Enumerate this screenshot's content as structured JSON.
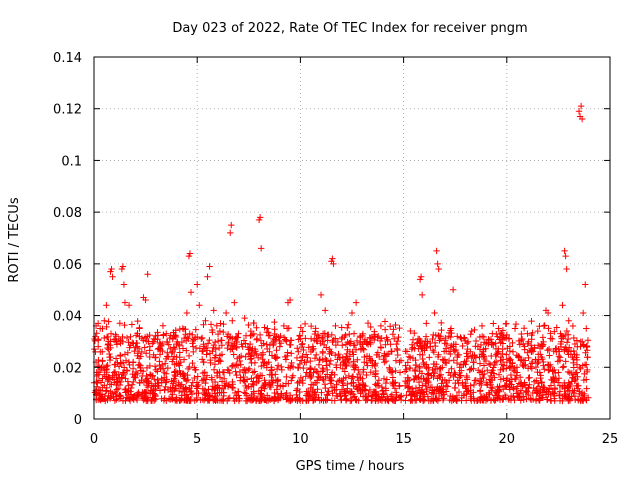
{
  "chart_data": {
    "type": "scatter",
    "title": "Day 023 of 2022, Rate Of TEC Index for receiver pngm",
    "xlabel": "GPS time / hours",
    "ylabel": "ROTI / TECUs",
    "xlim": [
      0,
      25
    ],
    "ylim": [
      0,
      0.14
    ],
    "xticks": [
      0,
      5,
      10,
      15,
      20,
      25
    ],
    "xtick_labels": [
      "0",
      "5",
      "10",
      "15",
      "20",
      "25"
    ],
    "yticks": [
      0,
      0.02,
      0.04,
      0.06,
      0.08,
      0.1,
      0.12,
      0.14
    ],
    "ytick_labels": [
      "0",
      "0.02",
      "0.04",
      "0.06",
      "0.08",
      "0.1",
      "0.12",
      "0.14"
    ],
    "grid": true,
    "marker": "+",
    "color": "#ff0000",
    "series": [
      {
        "name": "ROTI",
        "points": [
          [
            0.0,
            0.014
          ],
          [
            0.1,
            0.022
          ],
          [
            0.2,
            0.018
          ],
          [
            0.3,
            0.011
          ],
          [
            0.4,
            0.026
          ],
          [
            0.5,
            0.013
          ],
          [
            0.6,
            0.019
          ],
          [
            0.7,
            0.009
          ],
          [
            0.8,
            0.024
          ],
          [
            0.9,
            0.016
          ],
          [
            0.1,
            0.036
          ],
          [
            0.2,
            0.037
          ],
          [
            0.3,
            0.035
          ],
          [
            0.5,
            0.038
          ],
          [
            0.6,
            0.044
          ],
          [
            0.7,
            0.03
          ],
          [
            0.8,
            0.057
          ],
          [
            0.85,
            0.058
          ],
          [
            0.9,
            0.055
          ],
          [
            1.0,
            0.021
          ],
          [
            1.1,
            0.014
          ],
          [
            1.2,
            0.031
          ],
          [
            1.3,
            0.008
          ],
          [
            1.4,
            0.018
          ],
          [
            1.5,
            0.025
          ],
          [
            1.35,
            0.058
          ],
          [
            1.4,
            0.059
          ],
          [
            1.45,
            0.052
          ],
          [
            1.5,
            0.045
          ],
          [
            1.7,
            0.044
          ],
          [
            1.8,
            0.012
          ],
          [
            1.9,
            0.022
          ],
          [
            2.0,
            0.017
          ],
          [
            2.1,
            0.028
          ],
          [
            2.2,
            0.035
          ],
          [
            2.3,
            0.015
          ],
          [
            2.4,
            0.047
          ],
          [
            2.5,
            0.046
          ],
          [
            2.6,
            0.056
          ],
          [
            2.7,
            0.024
          ],
          [
            2.8,
            0.013
          ],
          [
            2.9,
            0.031
          ],
          [
            3.0,
            0.019
          ],
          [
            3.1,
            0.027
          ],
          [
            3.2,
            0.011
          ],
          [
            3.3,
            0.021
          ],
          [
            3.4,
            0.016
          ],
          [
            3.5,
            0.033
          ],
          [
            3.6,
            0.024
          ],
          [
            3.7,
            0.012
          ],
          [
            3.8,
            0.026
          ],
          [
            3.9,
            0.018
          ],
          [
            4.0,
            0.029
          ],
          [
            4.1,
            0.014
          ],
          [
            4.2,
            0.022
          ],
          [
            4.3,
            0.035
          ],
          [
            4.4,
            0.017
          ],
          [
            4.5,
            0.041
          ],
          [
            4.6,
            0.063
          ],
          [
            4.65,
            0.064
          ],
          [
            4.7,
            0.049
          ],
          [
            4.8,
            0.028
          ],
          [
            4.9,
            0.019
          ],
          [
            5.0,
            0.052
          ],
          [
            5.1,
            0.044
          ],
          [
            5.2,
            0.031
          ],
          [
            5.3,
            0.022
          ],
          [
            5.4,
            0.038
          ],
          [
            5.5,
            0.055
          ],
          [
            5.6,
            0.059
          ],
          [
            5.7,
            0.016
          ],
          [
            5.8,
            0.042
          ],
          [
            5.9,
            0.027
          ],
          [
            6.0,
            0.013
          ],
          [
            6.1,
            0.034
          ],
          [
            6.2,
            0.025
          ],
          [
            6.3,
            0.018
          ],
          [
            6.4,
            0.041
          ],
          [
            6.5,
            0.029
          ],
          [
            6.6,
            0.072
          ],
          [
            6.65,
            0.075
          ],
          [
            6.7,
            0.038
          ],
          [
            6.8,
            0.045
          ],
          [
            6.9,
            0.021
          ],
          [
            7.0,
            0.033
          ],
          [
            7.1,
            0.016
          ],
          [
            7.2,
            0.028
          ],
          [
            7.3,
            0.039
          ],
          [
            7.4,
            0.012
          ],
          [
            7.5,
            0.025
          ],
          [
            7.6,
            0.034
          ],
          [
            7.7,
            0.018
          ],
          [
            7.8,
            0.027
          ],
          [
            7.9,
            0.031
          ],
          [
            8.0,
            0.077
          ],
          [
            8.05,
            0.078
          ],
          [
            8.1,
            0.066
          ],
          [
            8.2,
            0.022
          ],
          [
            8.3,
            0.014
          ],
          [
            8.4,
            0.035
          ],
          [
            8.5,
            0.026
          ],
          [
            8.6,
            0.017
          ],
          [
            8.7,
            0.031
          ],
          [
            8.8,
            0.024
          ],
          [
            8.9,
            0.013
          ],
          [
            9.0,
            0.028
          ],
          [
            9.1,
            0.019
          ],
          [
            9.2,
            0.036
          ],
          [
            9.3,
            0.023
          ],
          [
            9.4,
            0.045
          ],
          [
            9.5,
            0.046
          ],
          [
            9.6,
            0.016
          ],
          [
            9.8,
            0.011
          ],
          [
            9.9,
            0.026
          ],
          [
            10.0,
            0.031
          ],
          [
            10.1,
            0.015
          ],
          [
            10.2,
            0.022
          ],
          [
            10.3,
            0.018
          ],
          [
            10.5,
            0.012
          ],
          [
            10.6,
            0.028
          ],
          [
            10.8,
            0.014
          ],
          [
            10.9,
            0.021
          ],
          [
            11.0,
            0.048
          ],
          [
            11.1,
            0.033
          ],
          [
            11.2,
            0.042
          ],
          [
            11.3,
            0.019
          ],
          [
            11.4,
            0.027
          ],
          [
            11.5,
            0.061
          ],
          [
            11.55,
            0.062
          ],
          [
            11.6,
            0.06
          ],
          [
            11.7,
            0.036
          ],
          [
            11.8,
            0.023
          ],
          [
            11.9,
            0.015
          ],
          [
            12.0,
            0.031
          ],
          [
            12.2,
            0.016
          ],
          [
            12.4,
            0.026
          ],
          [
            12.5,
            0.041
          ],
          [
            12.6,
            0.033
          ],
          [
            12.7,
            0.045
          ],
          [
            12.8,
            0.019
          ],
          [
            13.0,
            0.012
          ],
          [
            13.1,
            0.024
          ],
          [
            13.2,
            0.017
          ],
          [
            13.4,
            0.029
          ],
          [
            13.6,
            0.021
          ],
          [
            13.8,
            0.015
          ],
          [
            13.9,
            0.036
          ],
          [
            14.0,
            0.011
          ],
          [
            14.2,
            0.025
          ],
          [
            14.4,
            0.018
          ],
          [
            14.6,
            0.014
          ],
          [
            14.8,
            0.022
          ],
          [
            15.2,
            0.016
          ],
          [
            15.4,
            0.027
          ],
          [
            15.6,
            0.012
          ],
          [
            15.7,
            0.031
          ],
          [
            15.8,
            0.054
          ],
          [
            15.85,
            0.055
          ],
          [
            15.9,
            0.048
          ],
          [
            16.0,
            0.021
          ],
          [
            16.1,
            0.037
          ],
          [
            16.2,
            0.014
          ],
          [
            16.3,
            0.028
          ],
          [
            16.4,
            0.019
          ],
          [
            16.5,
            0.041
          ],
          [
            16.6,
            0.065
          ],
          [
            16.65,
            0.06
          ],
          [
            16.7,
            0.058
          ],
          [
            16.8,
            0.032
          ],
          [
            16.9,
            0.023
          ],
          [
            17.0,
            0.015
          ],
          [
            17.1,
            0.029
          ],
          [
            17.2,
            0.018
          ],
          [
            17.3,
            0.035
          ],
          [
            17.4,
            0.05
          ],
          [
            17.5,
            0.012
          ],
          [
            17.6,
            0.024
          ],
          [
            17.7,
            0.016
          ],
          [
            17.8,
            0.031
          ],
          [
            17.9,
            0.021
          ],
          [
            18.0,
            0.013
          ],
          [
            18.1,
            0.027
          ],
          [
            18.2,
            0.019
          ],
          [
            18.3,
            0.034
          ],
          [
            18.4,
            0.022
          ],
          [
            18.5,
            0.015
          ],
          [
            18.6,
            0.028
          ],
          [
            18.7,
            0.018
          ],
          [
            18.8,
            0.036
          ],
          [
            18.9,
            0.024
          ],
          [
            19.0,
            0.014
          ],
          [
            19.1,
            0.029
          ],
          [
            19.2,
            0.021
          ],
          [
            19.3,
            0.033
          ],
          [
            19.4,
            0.016
          ],
          [
            19.5,
            0.025
          ],
          [
            19.6,
            0.035
          ],
          [
            19.7,
            0.019
          ],
          [
            19.8,
            0.027
          ],
          [
            19.9,
            0.013
          ],
          [
            20.0,
            0.022
          ],
          [
            20.1,
            0.031
          ],
          [
            20.2,
            0.017
          ],
          [
            20.3,
            0.026
          ],
          [
            20.4,
            0.035
          ],
          [
            20.5,
            0.018
          ],
          [
            20.6,
            0.024
          ],
          [
            20.7,
            0.014
          ],
          [
            20.8,
            0.029
          ],
          [
            20.9,
            0.021
          ],
          [
            21.0,
            0.033
          ],
          [
            21.1,
            0.016
          ],
          [
            21.2,
            0.026
          ],
          [
            21.3,
            0.012
          ],
          [
            21.4,
            0.023
          ],
          [
            21.5,
            0.034
          ],
          [
            21.6,
            0.018
          ],
          [
            21.7,
            0.028
          ],
          [
            21.8,
            0.036
          ],
          [
            21.9,
            0.042
          ],
          [
            22.0,
            0.041
          ],
          [
            22.1,
            0.021
          ],
          [
            22.2,
            0.031
          ],
          [
            22.3,
            0.015
          ],
          [
            22.4,
            0.026
          ],
          [
            22.5,
            0.018
          ],
          [
            22.6,
            0.033
          ],
          [
            22.7,
            0.044
          ],
          [
            22.8,
            0.065
          ],
          [
            22.85,
            0.063
          ],
          [
            22.9,
            0.058
          ],
          [
            23.0,
            0.038
          ],
          [
            23.1,
            0.025
          ],
          [
            23.2,
            0.016
          ],
          [
            23.3,
            0.029
          ],
          [
            23.4,
            0.021
          ],
          [
            23.5,
            0.119
          ],
          [
            23.55,
            0.117
          ],
          [
            23.6,
            0.121
          ],
          [
            23.65,
            0.116
          ],
          [
            23.7,
            0.041
          ],
          [
            23.8,
            0.052
          ],
          [
            23.85,
            0.035
          ],
          [
            23.9,
            0.019
          ]
        ]
      }
    ]
  }
}
